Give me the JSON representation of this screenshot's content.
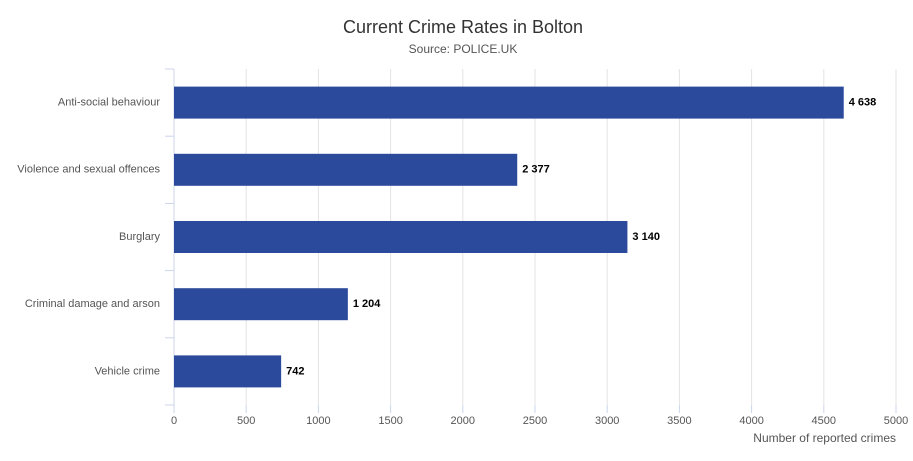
{
  "chart_data": {
    "type": "hbar",
    "title": "Current Crime Rates in Bolton",
    "subtitle": "Source: POLICE.UK",
    "x_label": "Number of reported crimes",
    "categories": [
      "Anti-social behaviour",
      "Violence and sexual offences",
      "Burglary",
      "Criminal damage and arson",
      "Vehicle crime"
    ],
    "values": [
      4638,
      2377,
      3140,
      1204,
      742
    ],
    "value_labels": [
      "4 638",
      "2 377",
      "3 140",
      "1 204",
      "742"
    ],
    "color": "#2c4a9c",
    "xlim": [
      0,
      5000
    ],
    "xticks": [
      0,
      500,
      1000,
      1500,
      2000,
      2500,
      3000,
      3500,
      4000,
      4500,
      5000
    ],
    "grid": true
  }
}
